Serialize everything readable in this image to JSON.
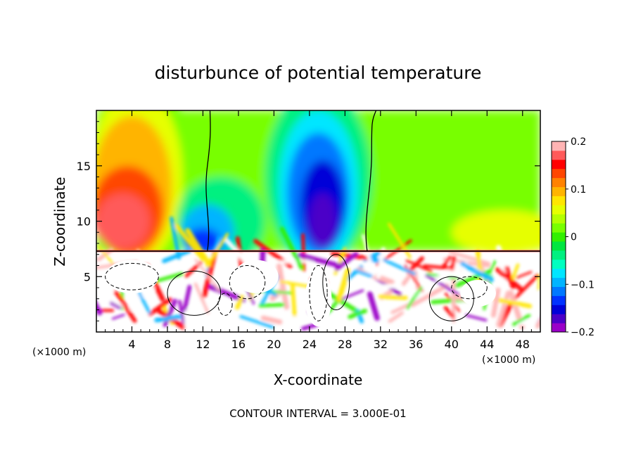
{
  "chart_data": {
    "type": "heatmap",
    "title": "disturbunce of potential temperature",
    "xlabel": "X-coordinate",
    "ylabel": "Z-coordinate",
    "x_unit_left": "(×1000 m)",
    "x_unit_right": "(×1000 m)",
    "footer": "CONTOUR INTERVAL = 3.000E-01",
    "xlim": [
      0,
      50
    ],
    "ylim": [
      0,
      20
    ],
    "x_ticks": [
      4,
      8,
      12,
      16,
      20,
      24,
      28,
      32,
      36,
      40,
      44,
      48
    ],
    "x_tick_labels": [
      "4",
      "8",
      "12",
      "16",
      "20",
      "24",
      "28",
      "32",
      "36",
      "40",
      "44",
      "48"
    ],
    "y_ticks": [
      5,
      10,
      15
    ],
    "y_tick_labels": [
      "5",
      "10",
      "15"
    ],
    "colorbar": {
      "range": [
        -0.2,
        0.2
      ],
      "tick_values": [
        0.2,
        0.1,
        0,
        -0.1,
        -0.2
      ],
      "tick_labels": [
        "0.2",
        "0.1",
        "0",
        "−0.1",
        "−0.2"
      ],
      "colors": [
        "#9a00c8",
        "#4b00c8",
        "#0000d8",
        "#0032ff",
        "#0078ff",
        "#00b4ff",
        "#00e6ff",
        "#00ffc0",
        "#00f080",
        "#00e640",
        "#32f000",
        "#78ff00",
        "#b4ff00",
        "#e6ff00",
        "#ffe600",
        "#ffb400",
        "#ff8200",
        "#ff4600",
        "#ff0000",
        "#ff5a5a",
        "#ffb4b4"
      ]
    },
    "features": [
      {
        "type": "warm",
        "x": 3,
        "z": 11,
        "value": 0.15
      },
      {
        "type": "warm",
        "x": 4,
        "z": 16,
        "value": 0.08
      },
      {
        "type": "cool",
        "x": 25,
        "z": 12,
        "value": -0.18
      },
      {
        "type": "cool",
        "x": 12,
        "z": 9,
        "value": -0.12
      },
      {
        "type": "cool",
        "x": 45,
        "z": 17,
        "value": 0.01
      }
    ],
    "boundary_layer_top": 7.3
  }
}
